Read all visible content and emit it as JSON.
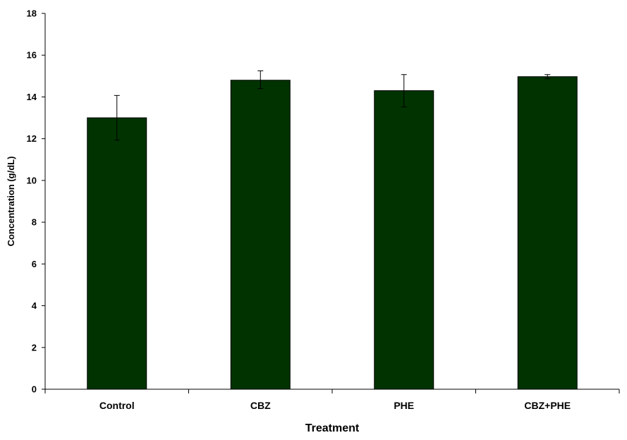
{
  "chart_data": {
    "type": "bar",
    "categories": [
      "Control",
      "CBZ",
      "PHE",
      "CBZ+PHE"
    ],
    "values": [
      13.0,
      14.8,
      14.3,
      14.97
    ],
    "error_high": [
      14.07,
      15.25,
      15.07,
      15.07
    ],
    "error_low": [
      11.93,
      14.4,
      13.52,
      14.87
    ],
    "xlabel": "Treatment",
    "ylabel": "Concentration (g/dL)",
    "ylim": [
      0,
      18
    ],
    "yticks": [
      "0",
      "2",
      "4",
      "6",
      "8",
      "10",
      "12",
      "14",
      "16",
      "18"
    ],
    "grid": false,
    "bar_color": "#003300"
  }
}
